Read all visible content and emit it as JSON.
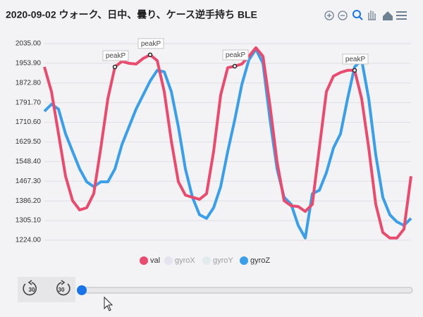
{
  "chart_data": {
    "type": "line",
    "title": "2020-09-02 ウォーク、日中、曇り、ケース逆手持ち BLE",
    "ylim": [
      1224,
      2035
    ],
    "yticks": [
      {
        "value": 2035,
        "label": "2035.00"
      },
      {
        "value": 1953.9,
        "label": "1953.90"
      },
      {
        "value": 1872.8,
        "label": "1872.80"
      },
      {
        "value": 1791.7,
        "label": "1791.70"
      },
      {
        "value": 1710.6,
        "label": "1710.60"
      },
      {
        "value": 1629.5,
        "label": "1629.50"
      },
      {
        "value": 1548.4,
        "label": "1548.40"
      },
      {
        "value": 1467.3,
        "label": "1467.30"
      },
      {
        "value": 1386.2,
        "label": "1386.20"
      },
      {
        "value": 1305.1,
        "label": "1305.10"
      },
      {
        "value": 1224,
        "label": "1224.00"
      }
    ],
    "grid": true,
    "legend": "bottom",
    "series": [
      {
        "name": "val",
        "color": "#e94b6f",
        "visible": true,
        "values": [
          1939,
          1837,
          1663,
          1488,
          1387,
          1349,
          1358,
          1416,
          1605,
          1808,
          1939,
          1962,
          1954,
          1951,
          1974,
          1989,
          1965,
          1837,
          1634,
          1465,
          1410,
          1401,
          1393,
          1416,
          1590,
          1823,
          1936,
          1942,
          1951,
          1983,
          2018,
          1983,
          1779,
          1547,
          1387,
          1366,
          1363,
          1343,
          1372,
          1605,
          1837,
          1901,
          1916,
          1925,
          1925,
          1808,
          1605,
          1372,
          1256,
          1233,
          1233,
          1270,
          1488
        ]
      },
      {
        "name": "gyroX",
        "color": "#d8cfe8",
        "visible": false,
        "values": []
      },
      {
        "name": "gyroY",
        "color": "#cfe3e3",
        "visible": false,
        "values": []
      },
      {
        "name": "gyroZ",
        "color": "#3a9fe8",
        "visible": true,
        "values": [
          1756,
          1785,
          1765,
          1663,
          1590,
          1518,
          1465,
          1445,
          1465,
          1465,
          1518,
          1619,
          1692,
          1765,
          1823,
          1881,
          1925,
          1919,
          1837,
          1692,
          1518,
          1401,
          1329,
          1314,
          1358,
          1445,
          1590,
          1721,
          1866,
          1968,
          2012,
          1954,
          1721,
          1518,
          1401,
          1372,
          1285,
          1233,
          1416,
          1430,
          1503,
          1605,
          1663,
          1808,
          1939,
          1968,
          1808,
          1576,
          1401,
          1329,
          1300,
          1285,
          1314
        ]
      }
    ],
    "annotations": [
      {
        "label": "peakP",
        "series": 0,
        "index": 10
      },
      {
        "label": "peakP",
        "series": 0,
        "index": 15
      },
      {
        "label": "peakP",
        "series": 0,
        "index": 27
      },
      {
        "label": "peakP",
        "series": 0,
        "index": 44
      }
    ]
  },
  "player": {
    "back": 30,
    "forward": 30
  }
}
